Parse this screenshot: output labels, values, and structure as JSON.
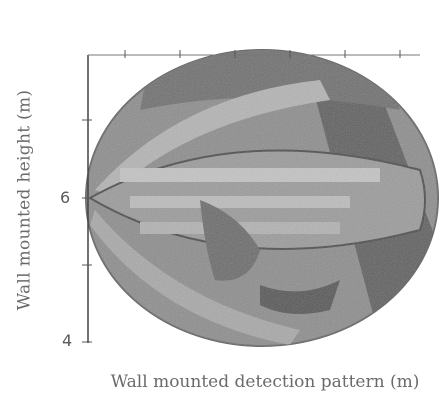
{
  "figure": {
    "ylabel": "Wall mounted height (m)",
    "xlabel": "Wall mounted detection pattern (m)",
    "y_ticks": [
      "6",
      "4"
    ],
    "colors": {
      "outer_ring": "#8c8c8c",
      "inner_band": "#b4b4b4",
      "dark_band": "#5e5e5e",
      "axis": "#444444"
    }
  }
}
